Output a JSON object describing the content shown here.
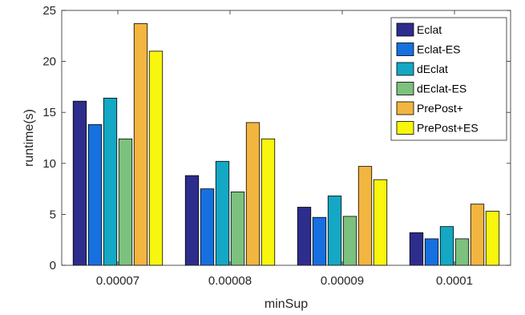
{
  "chart_data": {
    "type": "bar",
    "title": "",
    "xlabel": "minSup",
    "ylabel": "runtime(s)",
    "categories": [
      "0.00007",
      "0.00008",
      "0.00009",
      "0.0001"
    ],
    "ylim": [
      0,
      25
    ],
    "yticks": [
      "0",
      "5",
      "10",
      "15",
      "20",
      "25"
    ],
    "grid": false,
    "legend_position": "top-right",
    "series": [
      {
        "name": "Eclat",
        "color": "#2e2d8c",
        "values": [
          16.1,
          8.8,
          5.7,
          3.2
        ]
      },
      {
        "name": "Eclat-ES",
        "color": "#1670e0",
        "values": [
          13.8,
          7.5,
          4.7,
          2.6
        ]
      },
      {
        "name": "dEclat",
        "color": "#14a8c4",
        "values": [
          16.4,
          10.2,
          6.8,
          3.8
        ]
      },
      {
        "name": "dEclat-ES",
        "color": "#7cc17e",
        "values": [
          12.4,
          7.2,
          4.8,
          2.6
        ]
      },
      {
        "name": "PrePost+",
        "color": "#f2b540",
        "values": [
          23.7,
          14.0,
          9.7,
          6.0
        ]
      },
      {
        "name": "PrePost+ES",
        "color": "#f8f50e",
        "values": [
          21.0,
          12.4,
          8.4,
          5.3
        ]
      }
    ]
  }
}
